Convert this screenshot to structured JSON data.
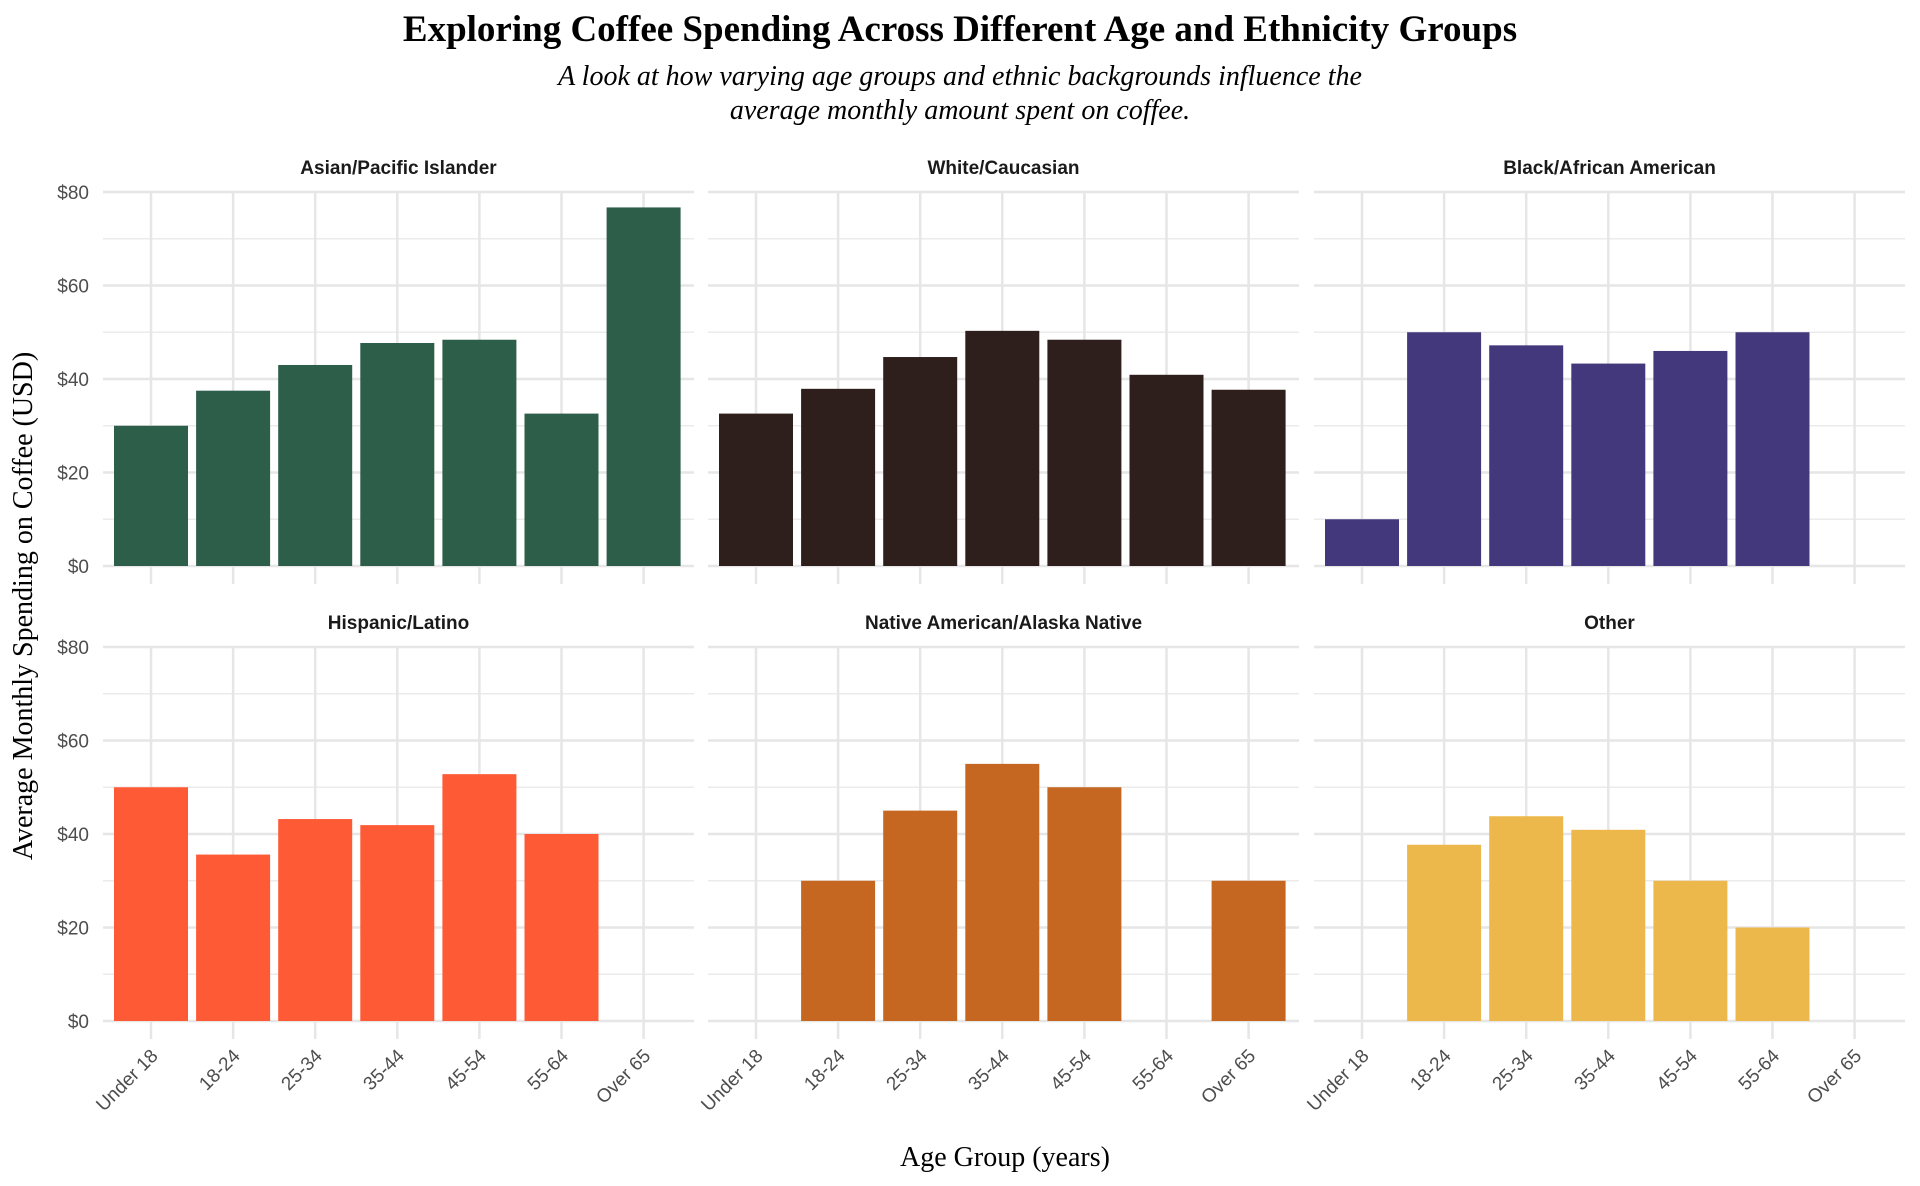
{
  "chart_data": {
    "type": "bar",
    "layout": "faceted 2x3 small multiples",
    "title": "Exploring Coffee Spending Across Different Age and Ethnicity Groups",
    "subtitle": "A look at how varying age groups and ethnic backgrounds influence the average monthly amount spent on coffee.",
    "subtitle_lines": [
      "A look at how varying age groups and ethnic backgrounds influence the",
      "average monthly amount spent on coffee."
    ],
    "xlabel": "Age Group (years)",
    "ylabel": "Average Monthly Spending on Coffee (USD)",
    "ylim": [
      0,
      80
    ],
    "yticks": [
      0,
      20,
      40,
      60,
      80
    ],
    "ytick_labels": [
      "$0",
      "$20",
      "$40",
      "$60",
      "$80"
    ],
    "grid": true,
    "categories": [
      "Under 18",
      "18-24",
      "25-34",
      "35-44",
      "45-54",
      "55-64",
      "Over 65"
    ],
    "series": [
      {
        "name": "Asian/Pacific Islander",
        "color": "#2D5E4A",
        "values": [
          30.0,
          37.5,
          43.0,
          47.7,
          48.4,
          32.6,
          76.7
        ]
      },
      {
        "name": "White/Caucasian",
        "color": "#2F1F1C",
        "values": [
          32.6,
          37.9,
          44.7,
          50.3,
          48.4,
          40.9,
          37.7
        ]
      },
      {
        "name": "Black/African American",
        "color": "#44387C",
        "values": [
          10.0,
          50.0,
          47.2,
          43.3,
          46.0,
          50.0,
          null
        ]
      },
      {
        "name": "Hispanic/Latino",
        "color": "#FF5A36",
        "values": [
          50.0,
          35.6,
          43.2,
          41.9,
          52.8,
          40.0,
          null
        ]
      },
      {
        "name": "Native American/Alaska Native",
        "color": "#C56721",
        "values": [
          null,
          30.0,
          45.0,
          55.0,
          50.0,
          null,
          30.0
        ]
      },
      {
        "name": "Other",
        "color": "#EDB84B",
        "values": [
          null,
          37.7,
          43.8,
          40.9,
          30.0,
          20.0,
          null
        ]
      }
    ]
  }
}
